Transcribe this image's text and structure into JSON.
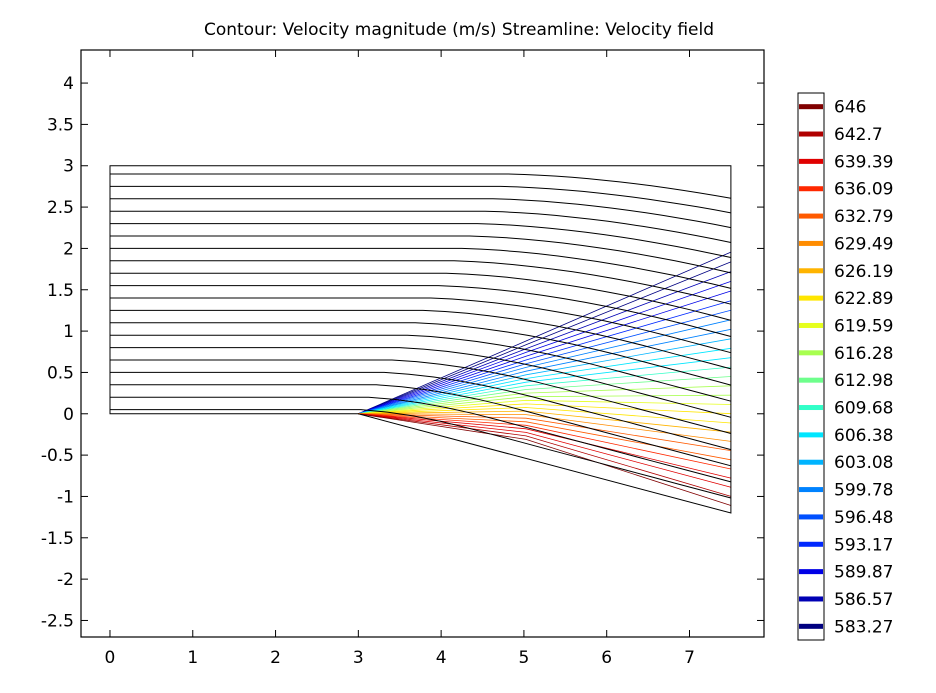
{
  "chart_data": {
    "type": "contour",
    "title": "Contour: Velocity magnitude (m/s)  Streamline: Velocity field",
    "xlabel": "",
    "ylabel": "",
    "xlim": [
      -0.35,
      7.9
    ],
    "ylim": [
      -2.7,
      4.4
    ],
    "x_ticks": [
      0,
      1,
      2,
      3,
      4,
      5,
      6,
      7
    ],
    "y_ticks": [
      -2.5,
      -2,
      -1.5,
      -1,
      -0.5,
      0,
      0.5,
      1,
      1.5,
      2,
      2.5,
      3,
      3.5,
      4
    ],
    "grid": false,
    "colorbar": {
      "placement": "right",
      "levels": [
        646,
        642.7,
        639.39,
        636.09,
        632.79,
        629.49,
        626.19,
        622.89,
        619.59,
        616.28,
        612.98,
        609.68,
        606.38,
        603.08,
        599.78,
        596.48,
        593.17,
        589.87,
        586.57,
        583.27
      ],
      "colors": [
        "#800000",
        "#b00000",
        "#e00000",
        "#ff2800",
        "#ff5a00",
        "#ff8c00",
        "#ffb400",
        "#ffe600",
        "#e6ff1e",
        "#a8ff50",
        "#6eff8c",
        "#32ffc8",
        "#00e6ff",
        "#00b4ff",
        "#0082ff",
        "#0050ff",
        "#0028ff",
        "#0000e6",
        "#0000b4",
        "#000080"
      ]
    },
    "domain_outline": [
      [
        0,
        0
      ],
      [
        0,
        3
      ],
      [
        7.5,
        3
      ],
      [
        7.5,
        -1.2
      ],
      [
        3,
        0
      ]
    ],
    "streamline_inlet_y": [
      0.05,
      0.2,
      0.35,
      0.5,
      0.65,
      0.8,
      0.95,
      1.1,
      1.25,
      1.4,
      1.55,
      1.7,
      1.85,
      2.0,
      2.15,
      2.3,
      2.45,
      2.6,
      2.75,
      2.9
    ],
    "wedge_start_x": 3,
    "wedge_end": [
      7.5,
      -1.2
    ],
    "outlet_x": 7.5
  }
}
